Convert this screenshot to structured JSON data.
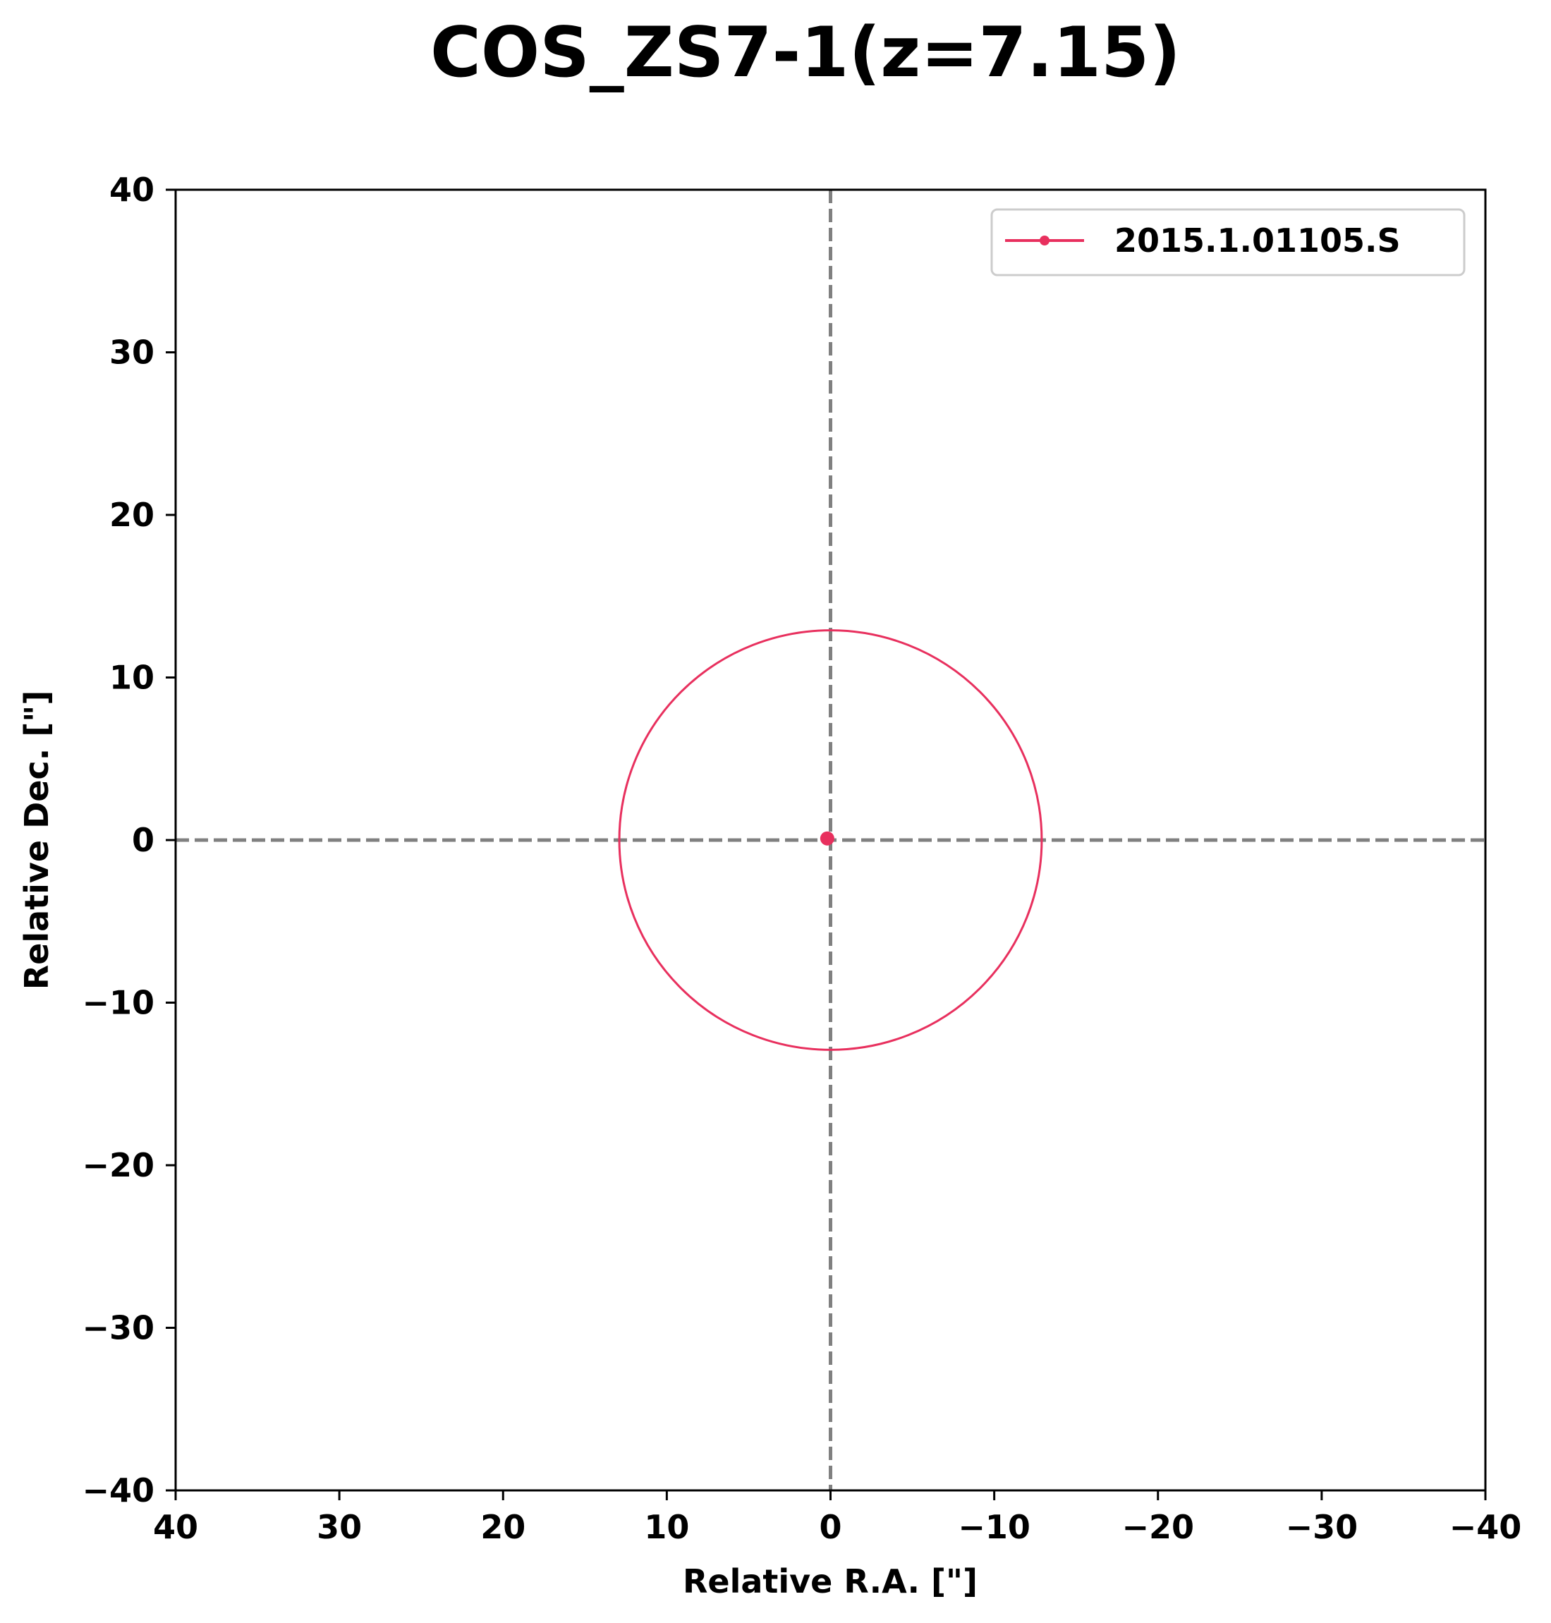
{
  "chart_data": {
    "type": "scatter",
    "title": "COS_ZS7-1(z=7.15)",
    "xlabel": "Relative R.A. [\"]",
    "ylabel": "Relative Dec. [\"]",
    "xlim": [
      40,
      -40
    ],
    "ylim": [
      -40,
      40
    ],
    "x_inverted": true,
    "xticks": [
      40,
      30,
      20,
      10,
      0,
      -10,
      -20,
      -30,
      -40
    ],
    "yticks": [
      40,
      30,
      20,
      10,
      0,
      -10,
      -20,
      -30,
      -40
    ],
    "xtick_labels": [
      "40",
      "30",
      "20",
      "10",
      "0",
      "−10",
      "−20",
      "−30",
      "−40"
    ],
    "ytick_labels": [
      "40",
      "30",
      "20",
      "10",
      "0",
      "−10",
      "−20",
      "−30",
      "−40"
    ],
    "grid": false,
    "reference_lines": {
      "x": 0,
      "y": 0,
      "style": "dashed",
      "color": "#808080"
    },
    "legend_position": "top-right",
    "series": [
      {
        "name": "2015.1.01105.S",
        "color": "#E8305E",
        "points": [
          {
            "x": 0.2,
            "y": 0.1
          }
        ],
        "circles": [
          {
            "x": 0.0,
            "y": 0.0,
            "radius": 12.9
          }
        ]
      }
    ]
  }
}
